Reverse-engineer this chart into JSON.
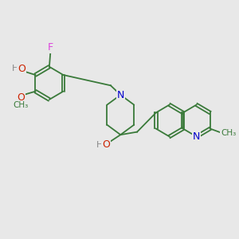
{
  "bg_color": "#e8e8e8",
  "bond_color": "#3a7a3a",
  "colors": {
    "F": "#dd44dd",
    "O": "#cc2200",
    "H": "#888888",
    "N": "#0000cc",
    "C": "#3a7a3a"
  },
  "figsize": [
    3.0,
    3.0
  ],
  "dpi": 100
}
